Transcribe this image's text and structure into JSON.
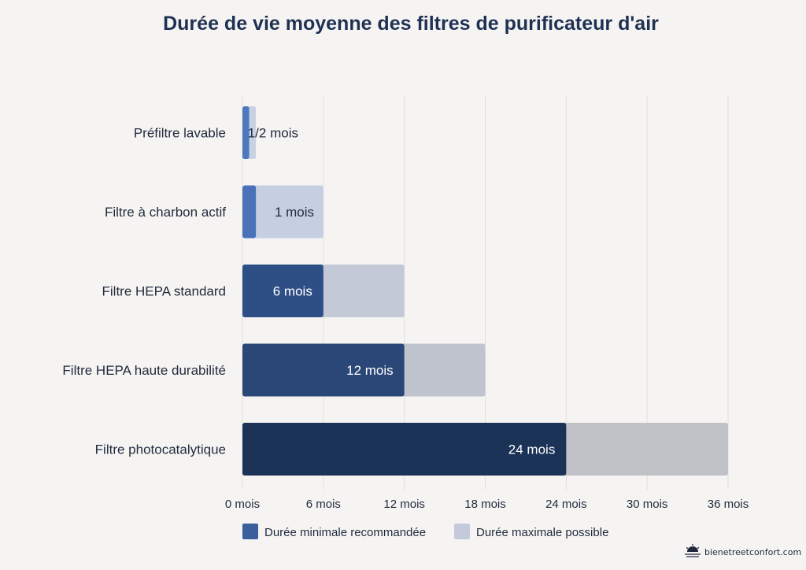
{
  "chart_data": {
    "type": "bar",
    "orientation": "horizontal",
    "stacked": "overlay",
    "title": "Durée de vie moyenne des filtres de purificateur d'air",
    "categories": [
      "Préfiltre lavable",
      "Filtre à charbon actif",
      "Filtre HEPA standard",
      "Filtre HEPA haute durabilité",
      "Filtre photocatalytique"
    ],
    "series": [
      {
        "name": "Durée minimale recommandée",
        "values": [
          0.5,
          1,
          6,
          12,
          24
        ],
        "colors": [
          "#4e78bd",
          "#4a72b8",
          "#2e4f85",
          "#2b4777",
          "#1c3358"
        ]
      },
      {
        "name": "Durée maximale possible",
        "values": [
          1,
          6,
          12,
          18,
          36
        ],
        "colors": [
          "#c9d2e2",
          "#c5cfe1",
          "#c3c9d6",
          "#bfc4ce",
          "#c0c2c8"
        ]
      }
    ],
    "data_labels": [
      "1/2 mois",
      "1 mois",
      "6 mois",
      "12 mois",
      "24 mois"
    ],
    "data_label_colors": [
      "#1f2a3d",
      "#1f2a3d",
      "#ffffff",
      "#ffffff",
      "#ffffff"
    ],
    "x_ticks": [
      0,
      6,
      12,
      18,
      24,
      30,
      36
    ],
    "x_tick_labels": [
      "0 mois",
      "6 mois",
      "12 mois",
      "18 mois",
      "24 mois",
      "30 mois",
      "36 mois"
    ],
    "xlim": [
      0,
      36
    ],
    "xlabel": "",
    "ylabel": "",
    "grid": "vertical",
    "legend_position": "bottom",
    "legend_colors": [
      "#3a5f9c",
      "#c5cadb"
    ]
  },
  "watermark": {
    "text": "bienetreetconfort.com",
    "icon": "sunrise-logo-icon"
  }
}
